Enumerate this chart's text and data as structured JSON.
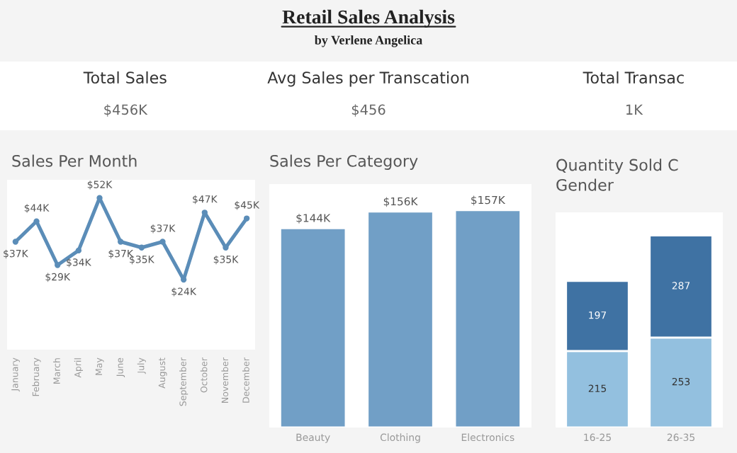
{
  "chart_data": [
    {
      "type": "other",
      "title": "Retail Sales Analysis",
      "subtitle": "by Verlene Angelica",
      "annotations": [
        "Total Sales",
        "$456K",
        "Avg Sales per Transcation",
        "$456",
        "Total Transac",
        "1K"
      ]
    },
    {
      "type": "line",
      "title": "Sales Per Month",
      "relative": false,
      "categories": [
        "January",
        "February",
        "March",
        "April",
        "May",
        "June",
        "July",
        "August",
        "September",
        "October",
        "November",
        "December"
      ],
      "series": [
        {
          "color": "#5b8db8",
          "values": [
            37,
            44,
            29,
            34,
            52,
            37,
            35,
            37,
            24,
            47,
            35,
            45
          ],
          "value_labels": [
            "$37K",
            "$44K",
            "$29K",
            "$34K",
            "$52K",
            "$37K",
            "$35K",
            "$37K",
            "$24K",
            "$47K",
            "$35K",
            "$45K"
          ]
        }
      ],
      "marker": "circle",
      "grid": false
    },
    {
      "type": "bar",
      "title": "Sales Per Category",
      "categories": [
        "Beauty",
        "Clothing",
        "Electronics"
      ],
      "values": [
        144,
        156,
        157
      ],
      "color": "#719fc6",
      "value_labels": [
        "$144K",
        "$156K",
        "$157K"
      ],
      "grid": false
    },
    {
      "type": "bar",
      "title": "Quantity Sold C\nGender",
      "stacked": true,
      "categories": [
        "16-25",
        "26-35"
      ],
      "series": [
        {
          "color": "#93c0df",
          "values": [
            215,
            253
          ]
        },
        {
          "color": "#3f72a3",
          "values": [
            197,
            287
          ]
        }
      ],
      "data_labels": true,
      "grid": false
    }
  ]
}
